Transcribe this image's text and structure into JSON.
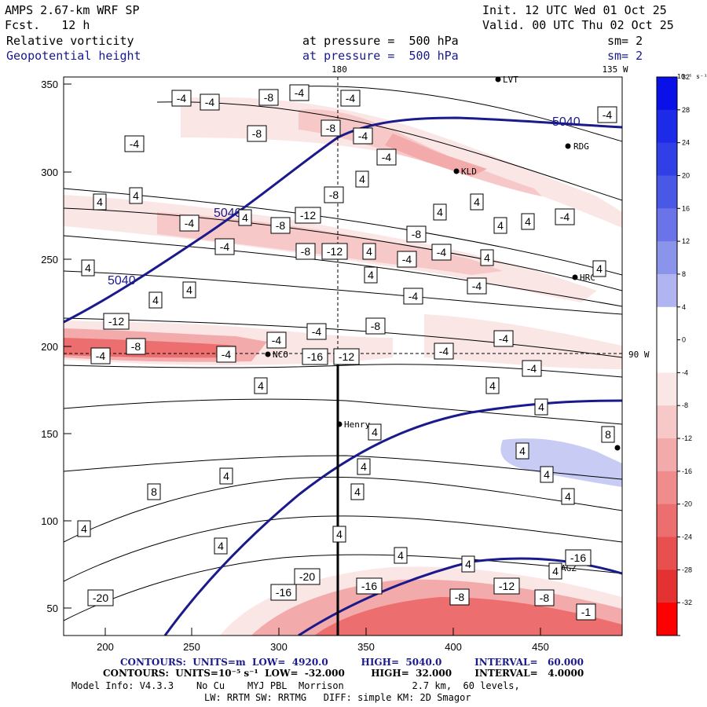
{
  "header": {
    "model": "AMPS 2.67-km WRF SP",
    "forecast": "Fcst.   12 h",
    "init": "Init. 12 UTC Wed 01 Oct 25",
    "valid": "Valid. 00 UTC Thu 02 Oct 25",
    "field1_name": "Relative vorticity",
    "field1_level": "at pressure =  500 hPa",
    "field1_smooth": "sm= 2",
    "field2_name": "Geopotential height",
    "field2_level": "at pressure =  500 hPa",
    "field2_smooth": "sm= 2"
  },
  "map": {
    "top_labels": {
      "lon180": "180",
      "lon135w": "135 W"
    },
    "right_label": "90 W",
    "y_ticks": [
      "350",
      "300",
      "250",
      "200",
      "150",
      "100",
      "50"
    ],
    "x_ticks": [
      "200",
      "250",
      "300",
      "350",
      "400",
      "450"
    ],
    "stations": [
      "LVT",
      "RDG",
      "KLD",
      "HRC",
      "NCO",
      "Henry",
      "AGZ"
    ],
    "height_labels": [
      "5040",
      "5040",
      "5040"
    ],
    "vorticity_labels": [
      "-4",
      "-4",
      "-8",
      "-4",
      "-4",
      "-4",
      "-8",
      "-8",
      "-4",
      "-4",
      "-4",
      "4",
      "-8",
      "4",
      "4",
      "4",
      "-4",
      "-8",
      "-12",
      "4",
      "4",
      "4",
      "4",
      "-4",
      "-4",
      "-8",
      "-12",
      "4",
      "-8",
      "-4",
      "-4",
      "4",
      "4",
      "4",
      "4",
      "4",
      "4",
      "-4",
      "-4",
      "-12",
      "-8",
      "-4",
      "-4",
      "-4",
      "-16",
      "-12",
      "-8",
      "-4",
      "-4",
      "-4",
      "4",
      "-4",
      "4",
      "4",
      "4",
      "8",
      "4",
      "4",
      "8",
      "4",
      "4",
      "4",
      "4",
      "4",
      "4",
      "4",
      "4",
      "4",
      "4",
      "-16",
      "-20",
      "-16",
      "-20",
      "-16",
      "-12",
      "-8",
      "-8",
      "-1"
    ]
  },
  "colorbar": {
    "units": "10⁻⁵ s⁻¹",
    "levels": [
      "32",
      "28",
      "24",
      "20",
      "16",
      "12",
      "8",
      "4",
      "0",
      "-4",
      "-8",
      "-12",
      "-16",
      "-20",
      "-24",
      "-28",
      "-32"
    ],
    "colors": [
      "#0a10e8",
      "#1d2ae8",
      "#3040e6",
      "#4a58e6",
      "#6a74e8",
      "#8a94ea",
      "#b0b4f0",
      "#ffffff",
      "#ffffff",
      "#fbe6e6",
      "#f6c8c8",
      "#f3aaaa",
      "#f08c8c",
      "#ec6e6e",
      "#e85050",
      "#e43232",
      "#ff0000"
    ]
  },
  "footer": {
    "contours1": "CONTOURS:  UNITS=m  LOW=  4920.0          HIGH=  5040.0          INTERVAL=   60.000",
    "contours2": "CONTOURS:  UNITS=10⁻⁵ s⁻¹  LOW=  -32.000        HIGH=  32.000       INTERVAL=   4.0000",
    "model_info1": "Model Info: V4.3.3    No Cu    MYJ PBL  Morrison            2.7 km,  60 levels,",
    "model_info2": "LW: RRTM SW: RRTMG   DIFF: simple KM: 2D Smagor"
  }
}
